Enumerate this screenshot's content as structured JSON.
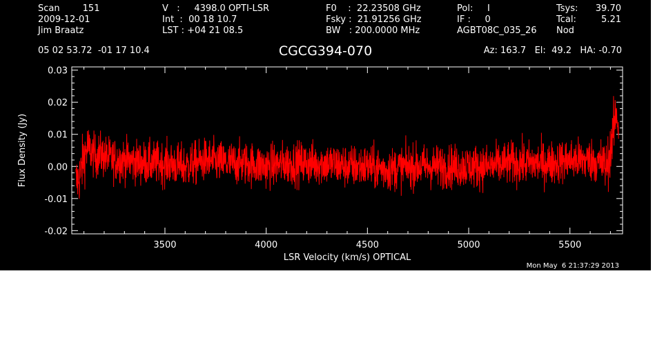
{
  "header": {
    "col1": [
      "Scan        151",
      "2009-12-01",
      "Jim Braatz"
    ],
    "col2": [
      "V   :     4398.0 OPTI-LSR",
      "Int  :  00 18 10.7",
      "LST : +04 21 08.5"
    ],
    "col3": [
      "F0    :  22.23508 GHz",
      "Fsky :  21.91256 GHz",
      "BW   : 200.0000 MHz"
    ],
    "col4": [
      "Pol:     I",
      "IF :     0",
      "AGBT08C_035_26"
    ],
    "col5_labels": [
      "Tsys:",
      "Tcal:",
      "Nod"
    ],
    "col5_values": [
      "39.70",
      "5.21",
      ""
    ],
    "coords": "05 02 53.72  -01 17 10.4",
    "source": "CGCG394-070",
    "azel": "Az: 163.7   El:  49.2   HA: -0.70",
    "timestamp": "Mon May  6 21:37:29 2013"
  },
  "colors": {
    "background": "#000000",
    "foreground": "#ffffff",
    "trace": "#ff0000"
  },
  "chart_data": {
    "type": "line",
    "title": "CGCG394-070",
    "xlabel": "LSR Velocity (km/s) OPTICAL",
    "ylabel": "Flux Density (Jy)",
    "xlim": [
      3040,
      5760
    ],
    "ylim": [
      -0.021,
      0.031
    ],
    "xticks": [
      3500,
      4000,
      4500,
      5000,
      5500
    ],
    "xtick_labels": [
      "3500",
      "4000",
      "4500",
      "5000",
      "5500"
    ],
    "yticks": [
      -0.02,
      -0.01,
      0.0,
      0.01,
      0.02,
      0.03
    ],
    "ytick_labels": [
      "-0.02",
      "-0.01",
      "0.00",
      "0.01",
      "0.02",
      "0.03"
    ],
    "grid": false,
    "series": [
      {
        "color": "#ff0000",
        "x": [
          3060,
          3080,
          3100,
          3120,
          3140,
          3160,
          3180,
          3200,
          3250,
          3300,
          3400,
          3500,
          3600,
          3700,
          3800,
          3900,
          4000,
          4100,
          4200,
          4300,
          4400,
          4500,
          4600,
          4700,
          4800,
          4900,
          5000,
          5100,
          5200,
          5300,
          5400,
          5500,
          5550,
          5600,
          5620,
          5640,
          5660,
          5680,
          5690,
          5700,
          5710,
          5720,
          5730,
          5735,
          5740
        ],
        "y": [
          -0.005,
          -0.003,
          0.003,
          0.006,
          0.004,
          0.003,
          0.004,
          0.003,
          0.002,
          0.002,
          0.001,
          0.001,
          0.0,
          0.002,
          0.001,
          0.001,
          0.0,
          0.001,
          0.001,
          0.001,
          0.0,
          0.0,
          -0.001,
          0.0,
          0.0,
          0.0,
          0.0,
          0.0,
          0.001,
          0.001,
          0.001,
          0.002,
          0.002,
          0.002,
          0.002,
          0.001,
          0.001,
          0.0,
          0.002,
          0.005,
          0.009,
          0.013,
          0.018,
          0.014,
          0.012
        ]
      }
    ]
  }
}
